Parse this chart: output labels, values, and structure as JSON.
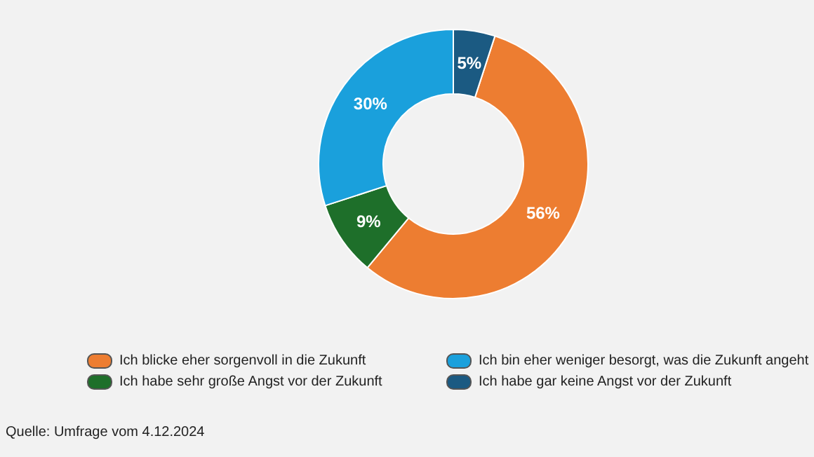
{
  "chart_data": {
    "type": "donut",
    "categories": [
      "Ich blicke eher sorgenvoll in die Zukunft",
      "Ich habe sehr große Angst vor der Zukunft",
      "Ich bin eher weniger besorgt, was die Zukunft angeht",
      "Ich habe gar keine Angst vor der Zukunft"
    ],
    "values": [
      56,
      9,
      30,
      5
    ],
    "colors": [
      "#ed7d31",
      "#1e6f2a",
      "#1aa0dc",
      "#1b5a82"
    ],
    "value_labels": [
      "56%",
      "9%",
      "30%",
      "5%"
    ],
    "legend": "bottom",
    "annotations": [
      "Quelle: Umfrage vom 4.12.2024"
    ]
  }
}
